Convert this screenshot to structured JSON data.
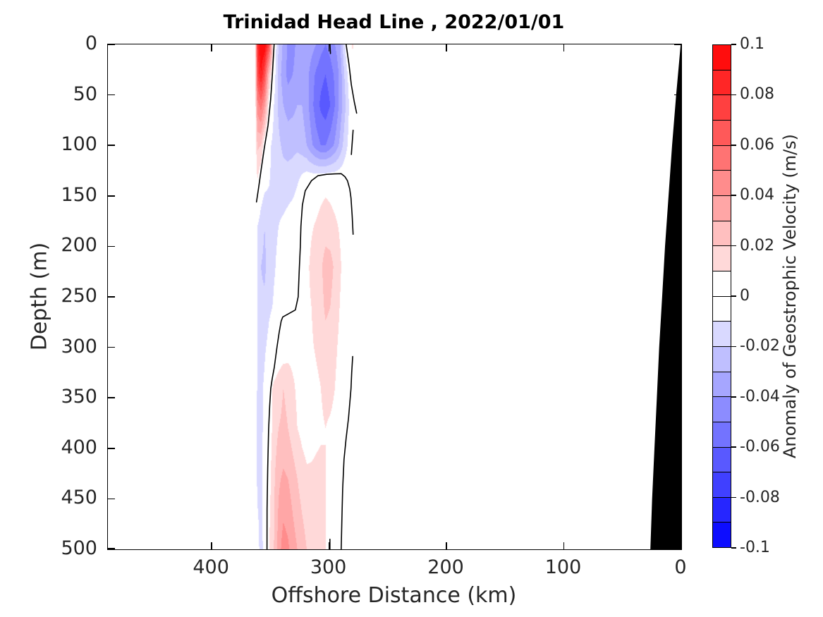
{
  "figure": {
    "title": "Trinidad Head Line , 2022/01/01",
    "background": "#FFFFFF",
    "coast_color": "#000000",
    "contour_line_color": "#000000"
  },
  "axes": {
    "x": {
      "label": "Offshore Distance (km)",
      "min": 0,
      "max": 488,
      "reversed": true,
      "ticks": [
        400,
        300,
        200,
        100,
        0
      ],
      "tick_labels": [
        "400",
        "300",
        "200",
        "100",
        "0"
      ]
    },
    "y": {
      "label": "Depth (m)",
      "min": 0,
      "max": 500,
      "increasing_downward": true,
      "ticks": [
        0,
        50,
        100,
        150,
        200,
        250,
        300,
        350,
        400,
        450,
        500
      ],
      "tick_labels": [
        "0",
        "50",
        "100",
        "150",
        "200",
        "250",
        "300",
        "350",
        "400",
        "450",
        "500"
      ]
    }
  },
  "colorbar": {
    "label": "Anomaly of Geostrophic Velocity (m/s)",
    "min": -0.1,
    "max": 0.1,
    "step": 0.01,
    "tick_labels": [
      "0.1",
      "0.08",
      "0.06",
      "0.04",
      "0.02",
      "0",
      "-0.02",
      "-0.04",
      "-0.06",
      "-0.08",
      "-0.1"
    ],
    "colors_pos": [
      "#FFFFFF",
      "#FFD9D9",
      "#FFBFBF",
      "#FFA6A6",
      "#FF8C8C",
      "#FF7373",
      "#FF5959",
      "#FF4040",
      "#FF2626",
      "#FF0D0D"
    ],
    "colors_neg": [
      "#FFFFFF",
      "#D9D9FF",
      "#BFBFFF",
      "#A6A6FF",
      "#8C8CFF",
      "#7373FF",
      "#5959FF",
      "#4040FF",
      "#2626FF",
      "#0D0DFF"
    ]
  },
  "chart_data": {
    "type": "heatmap",
    "style": "filled-contour",
    "xlabel": "Offshore Distance (km)",
    "ylabel": "Depth (m)",
    "zlabel": "Anomaly of Geostrophic Velocity (m/s)",
    "x_km": [
      488,
      375,
      363,
      361,
      358,
      355,
      351,
      347,
      343,
      339,
      335,
      331,
      327,
      323,
      319,
      315,
      311,
      307,
      303,
      299,
      295,
      291,
      287,
      283,
      280,
      276,
      270,
      262,
      150,
      0
    ],
    "depth_m": [
      0,
      30,
      60,
      100,
      140,
      180,
      220,
      260,
      300,
      340,
      380,
      430,
      500
    ],
    "velocity_anomaly_ms": [
      [
        0,
        0,
        0,
        0.08,
        0.1,
        0.1,
        0.07,
        0.0,
        -0.02,
        -0.032,
        -0.042,
        -0.045,
        -0.036,
        -0.03,
        -0.032,
        -0.036,
        -0.04,
        -0.046,
        -0.05,
        -0.046,
        -0.04,
        -0.034,
        -0.012,
        0.004,
        0.012,
        0.004,
        0,
        0,
        0,
        0
      ],
      [
        0,
        0,
        0,
        0.07,
        0.09,
        0.07,
        0.02,
        -0.003,
        -0.025,
        -0.035,
        -0.043,
        -0.04,
        -0.034,
        -0.032,
        -0.036,
        -0.045,
        -0.052,
        -0.057,
        -0.06,
        -0.055,
        -0.048,
        -0.038,
        -0.02,
        -0.006,
        0.002,
        0.001,
        0,
        0,
        0,
        0
      ],
      [
        0,
        0,
        0,
        0.045,
        0.055,
        0.04,
        0.003,
        -0.01,
        -0.022,
        -0.03,
        -0.034,
        -0.033,
        -0.03,
        -0.03,
        -0.036,
        -0.046,
        -0.056,
        -0.062,
        -0.066,
        -0.06,
        -0.05,
        -0.038,
        -0.024,
        -0.01,
        -0.003,
        0,
        0,
        0,
        0,
        0
      ],
      [
        0,
        0,
        0,
        0.022,
        0.02,
        0.002,
        -0.008,
        -0.013,
        -0.018,
        -0.022,
        -0.024,
        -0.023,
        -0.022,
        -0.025,
        -0.03,
        -0.038,
        -0.045,
        -0.05,
        -0.05,
        -0.045,
        -0.038,
        -0.028,
        -0.016,
        -0.007,
        -0.002,
        0,
        0,
        0,
        0,
        0
      ],
      [
        0,
        0,
        0,
        0.008,
        -0.003,
        -0.008,
        -0.01,
        -0.012,
        -0.014,
        -0.015,
        -0.014,
        -0.013,
        -0.01,
        -0.004,
        0.001,
        0.003,
        0.005,
        0.007,
        0.008,
        0.007,
        0.005,
        0.003,
        0.001,
        -0.002,
        -0.002,
        0,
        0,
        0,
        0,
        0
      ],
      [
        0,
        0,
        0,
        -0.01,
        -0.016,
        -0.02,
        -0.016,
        -0.012,
        -0.01,
        -0.008,
        -0.006,
        -0.004,
        -0.002,
        0.003,
        0.006,
        0.009,
        0.011,
        0.013,
        0.015,
        0.014,
        0.012,
        0.009,
        0.006,
        0.003,
        -0.001,
        0,
        0,
        0,
        0,
        0
      ],
      [
        0,
        0,
        0,
        -0.012,
        -0.02,
        -0.022,
        -0.016,
        -0.011,
        -0.008,
        -0.006,
        -0.004,
        -0.002,
        -0.001,
        0.004,
        0.008,
        0.012,
        0.015,
        0.018,
        0.025,
        0.024,
        0.018,
        0.012,
        0.006,
        0.002,
        -0.002,
        0,
        0,
        0,
        0,
        0
      ],
      [
        0,
        0,
        0,
        -0.012,
        -0.018,
        -0.018,
        -0.012,
        -0.009,
        -0.007,
        -0.005,
        -0.003,
        -0.001,
        0.002,
        0.005,
        0.008,
        0.01,
        0.013,
        0.016,
        0.022,
        0.02,
        0.015,
        0.01,
        0.005,
        0.002,
        0,
        0,
        0,
        0,
        0,
        0
      ],
      [
        0,
        0,
        0,
        -0.012,
        -0.015,
        -0.012,
        -0.006,
        -0.002,
        0.001,
        0.003,
        0.005,
        0.006,
        0.006,
        0.007,
        0.008,
        0.009,
        0.011,
        0.013,
        0.016,
        0.015,
        0.012,
        0.008,
        0.004,
        0.001,
        -0.001,
        0,
        0,
        0,
        0,
        0
      ],
      [
        0,
        0,
        0,
        -0.012,
        -0.013,
        -0.008,
        0.005,
        0.012,
        0.016,
        0.02,
        0.018,
        0.012,
        0.008,
        0.005,
        0.004,
        0.005,
        0.008,
        0.01,
        0.012,
        0.012,
        0.01,
        0.006,
        0.003,
        0.001,
        0,
        0,
        0,
        0,
        0,
        0
      ],
      [
        0,
        0,
        0,
        -0.013,
        -0.013,
        -0.007,
        0.004,
        0.014,
        0.02,
        0.022,
        0.02,
        0.015,
        0.01,
        0.007,
        0.005,
        0.006,
        0.008,
        0.009,
        0.01,
        0.009,
        0.008,
        0.005,
        0.002,
        0.001,
        0,
        0,
        0,
        0,
        0,
        0
      ],
      [
        0,
        0,
        0,
        -0.013,
        -0.013,
        -0.005,
        0.006,
        0.018,
        0.028,
        0.032,
        0.03,
        0.025,
        0.02,
        0.015,
        0.012,
        0.012,
        0.012,
        0.012,
        0.01,
        0.008,
        0.005,
        0.003,
        0.001,
        0,
        0,
        0,
        0,
        0,
        0,
        0
      ],
      [
        0,
        0,
        0,
        -0.005,
        -0.015,
        -0.005,
        0.01,
        0.02,
        0.035,
        0.045,
        0.042,
        0.035,
        0.03,
        0.025,
        0.02,
        0.016,
        0.013,
        0.012,
        0.01,
        0.006,
        0.004,
        0.002,
        0.001,
        0,
        0,
        0,
        0,
        0,
        0,
        0
      ]
    ],
    "zero_contours_km_depth": [
      [
        [
          346.8,
          0
        ],
        [
          348.3,
          30
        ],
        [
          349.8,
          55
        ],
        [
          352.0,
          80
        ],
        [
          355.2,
          103
        ],
        [
          358.0,
          125
        ],
        [
          360.0,
          142
        ],
        [
          361.8,
          156
        ]
      ],
      [
        [
          285.5,
          0
        ],
        [
          283.0,
          20
        ],
        [
          281.0,
          40
        ],
        [
          278.5,
          57
        ],
        [
          276.5,
          68
        ]
      ],
      [
        [
          279.5,
          85
        ],
        [
          281.0,
          109
        ]
      ],
      [
        [
          299.2,
          0
        ],
        [
          298.8,
          9
        ]
      ],
      [
        [
          352.9,
          500
        ],
        [
          352.8,
          460
        ],
        [
          352.3,
          420
        ],
        [
          351.5,
          381
        ],
        [
          350.6,
          358
        ],
        [
          349.7,
          341
        ],
        [
          348.4,
          331
        ],
        [
          346.7,
          320
        ],
        [
          344.3,
          299
        ],
        [
          342.5,
          285
        ],
        [
          340.8,
          274
        ],
        [
          339.5,
          270
        ],
        [
          328.7,
          263
        ],
        [
          326.3,
          250
        ],
        [
          325.4,
          224
        ],
        [
          324.5,
          201
        ],
        [
          324.0,
          180
        ],
        [
          322.7,
          159
        ],
        [
          320.3,
          145
        ],
        [
          315.0,
          135
        ],
        [
          309.5,
          130
        ],
        [
          302.0,
          128.6
        ],
        [
          295.0,
          128.2
        ],
        [
          289.7,
          128
        ],
        [
          286.5,
          131
        ],
        [
          284.3,
          135
        ],
        [
          282.4,
          143
        ],
        [
          281.3,
          152
        ],
        [
          280.3,
          170
        ],
        [
          279.5,
          188
        ]
      ],
      [
        [
          279.9,
          309
        ],
        [
          280.7,
          325
        ],
        [
          281.3,
          341
        ],
        [
          283.4,
          370
        ],
        [
          285.5,
          390
        ],
        [
          287.3,
          411
        ],
        [
          288.4,
          440
        ],
        [
          289.1,
          470
        ],
        [
          289.7,
          500
        ]
      ],
      [
        [
          299.3,
          490
        ],
        [
          299.3,
          500
        ]
      ]
    ],
    "coast_polygon_km_depth": [
      [
        0.2,
        0
      ],
      [
        4,
        50
      ],
      [
        7.5,
        100
      ],
      [
        10.5,
        150
      ],
      [
        13.5,
        200
      ],
      [
        16,
        250
      ],
      [
        18.5,
        300
      ],
      [
        20.5,
        350
      ],
      [
        22.5,
        400
      ],
      [
        24.5,
        450
      ],
      [
        26,
        500
      ],
      [
        0,
        500
      ],
      [
        0,
        0
      ]
    ]
  }
}
